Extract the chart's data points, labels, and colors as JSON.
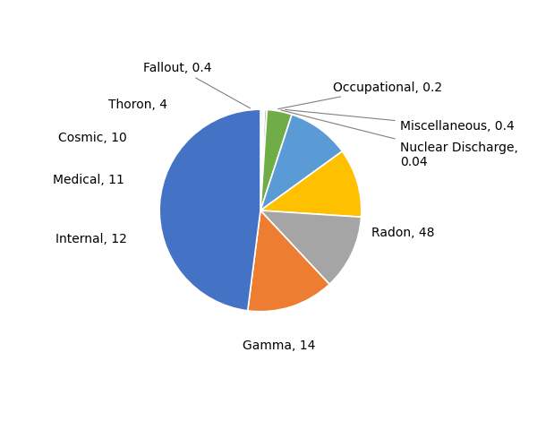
{
  "slices": [
    {
      "label": "Radon",
      "display": "Radon, 48",
      "value": 48,
      "color": "#4472C4"
    },
    {
      "label": "Gamma",
      "display": "Gamma, 14",
      "value": 14,
      "color": "#ED7D31"
    },
    {
      "label": "Internal",
      "display": "Internal, 12",
      "value": 12,
      "color": "#A5A5A5"
    },
    {
      "label": "Medical",
      "display": "Medical, 11",
      "value": 11,
      "color": "#FFC000"
    },
    {
      "label": "Cosmic",
      "display": "Cosmic, 10",
      "value": 10,
      "color": "#5B9BD5"
    },
    {
      "label": "Thoron",
      "display": "Thoron, 4",
      "value": 4,
      "color": "#70AD47"
    },
    {
      "label": "Fallout",
      "display": "Fallout, 0.4",
      "value": 0.4,
      "color": "#BFBFBF"
    },
    {
      "label": "Occupational",
      "display": "Occupational, 0.2",
      "value": 0.2,
      "color": "#DBDBDB"
    },
    {
      "label": "Miscellaneous",
      "display": "Miscellaneous, 0.4",
      "value": 0.4,
      "color": "#F2F2F2"
    },
    {
      "label": "Nuclear Discharge",
      "display": "Nuclear Discharge,\n0.04",
      "value": 0.04,
      "color": "#D9D9D9"
    }
  ],
  "figsize": [
    6.0,
    4.7
  ],
  "dpi": 100,
  "background_color": "#FFFFFF",
  "font_size": 10
}
